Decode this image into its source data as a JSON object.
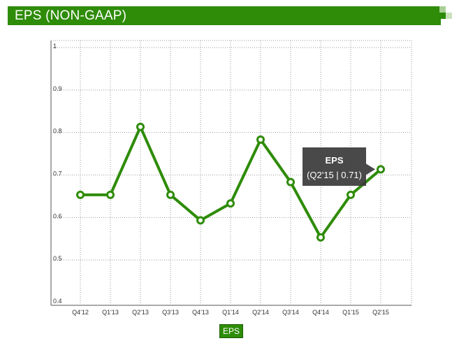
{
  "header": {
    "title": "EPS (NON-GAAP)"
  },
  "colors": {
    "brand": "#2e8c08",
    "line": "#2e8c08",
    "tooltip_bg": "#3a3a3a",
    "grid": "#9a9a9a"
  },
  "chart_data": {
    "type": "line",
    "categories": [
      "Q4'12",
      "Q1'13",
      "Q2'13",
      "Q3'13",
      "Q4'13",
      "Q1'14",
      "Q2'14",
      "Q3'14",
      "Q4'14",
      "Q1'15",
      "Q2'15"
    ],
    "series": [
      {
        "name": "EPS",
        "values": [
          0.65,
          0.65,
          0.81,
          0.65,
          0.59,
          0.63,
          0.78,
          0.68,
          0.55,
          0.65,
          0.71
        ]
      }
    ],
    "yticks": [
      "0.4",
      "0.5",
      "0.6",
      "0.7",
      "0.8",
      "0.9",
      "1"
    ],
    "ylim": [
      0.4,
      1
    ],
    "grid": true,
    "legend": {
      "position": "bottom-center",
      "label": "EPS"
    },
    "tooltip": {
      "title": "EPS",
      "text": "(Q2'15 | 0.71)",
      "category_index": 10
    }
  }
}
